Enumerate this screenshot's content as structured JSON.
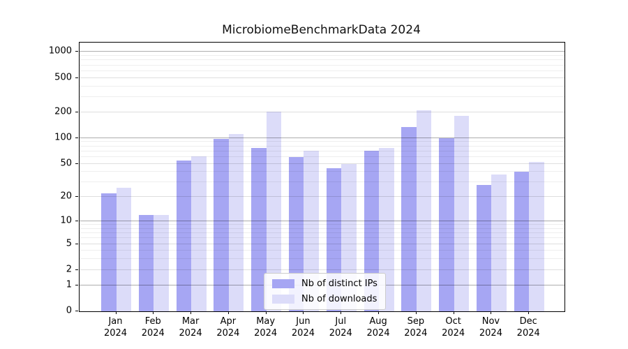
{
  "title": "MicrobiomeBenchmarkData 2024",
  "legend": {
    "items": [
      {
        "label": "Nb of distinct IPs",
        "color": "#a6a6f3"
      },
      {
        "label": "Nb of downloads",
        "color": "#dcdcf9"
      }
    ]
  },
  "colors": {
    "bar_distinct_ips": "#a6a6f3",
    "bar_downloads": "#dcdcf9",
    "axis": "#000000",
    "grid_major": "#a8a8a8",
    "grid_labeled": "#dddddd",
    "grid_minor": "#eeeeee",
    "legend_border": "#cccccc"
  },
  "chart_data": {
    "type": "bar",
    "title": "MicrobiomeBenchmarkData 2024",
    "categories": [
      "Jan",
      "Feb",
      "Mar",
      "Apr",
      "May",
      "Jun",
      "Jul",
      "Aug",
      "Sep",
      "Oct",
      "Nov",
      "Dec"
    ],
    "year_label": "2024",
    "series": [
      {
        "name": "Nb of distinct IPs",
        "color": "#a6a6f3",
        "values": [
          22,
          12,
          54,
          97,
          77,
          60,
          44,
          71,
          135,
          99,
          28,
          40
        ]
      },
      {
        "name": "Nb of downloads",
        "color": "#dcdcf9",
        "values": [
          26,
          12,
          61,
          112,
          202,
          71,
          50,
          77,
          209,
          180,
          37,
          52
        ]
      }
    ],
    "xlabel": "",
    "ylabel": "",
    "yscale": "log10(1+x)",
    "ylim": [
      0,
      1283
    ],
    "yticks": [
      0,
      1,
      2,
      5,
      10,
      20,
      50,
      100,
      200,
      500,
      1000
    ],
    "major_gridlines": [
      1,
      10,
      100,
      1000
    ],
    "grid": "horizontal",
    "legend_position": "lower-center"
  }
}
